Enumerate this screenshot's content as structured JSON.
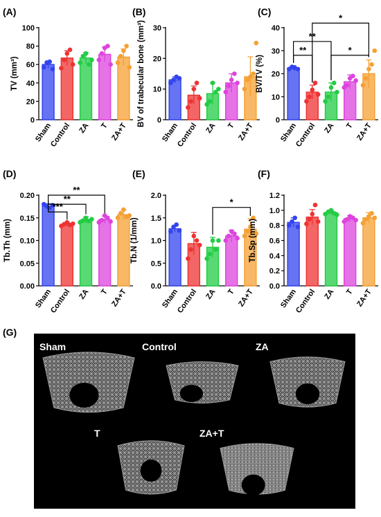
{
  "colors": {
    "Sham": "#3344ee",
    "Control": "#ee3333",
    "ZA": "#22cc44",
    "T": "#dd44dd",
    "ZA+T": "#f5a033",
    "image_bg": "#000000"
  },
  "chart_data": [
    {
      "id": "A",
      "panel_label": "(A)",
      "type": "bar",
      "ylabel": "TV (mm³)",
      "ylim": [
        0,
        100
      ],
      "yticks": [
        "0",
        "20",
        "40",
        "60",
        "80",
        "100"
      ],
      "categories": [
        "Sham",
        "Control",
        "ZA",
        "T",
        "ZA+T"
      ],
      "values": [
        60,
        67,
        67,
        71,
        68
      ],
      "errors": [
        4,
        8,
        6,
        8,
        9
      ],
      "points": [
        [
          57,
          62,
          63,
          55
        ],
        [
          56,
          65,
          72,
          76,
          60
        ],
        [
          62,
          69,
          72,
          60,
          65
        ],
        [
          65,
          72,
          78,
          80,
          60
        ],
        [
          62,
          69,
          75,
          80,
          57
        ]
      ],
      "significance": []
    },
    {
      "id": "B",
      "panel_label": "(B)",
      "type": "bar",
      "ylabel": "BV of trabecular bone (mm³)",
      "ylim": [
        0,
        30
      ],
      "yticks": [
        "0",
        "10",
        "20",
        "30"
      ],
      "categories": [
        "Sham",
        "Control",
        "ZA",
        "T",
        "ZA+T"
      ],
      "values": [
        13,
        8,
        8.5,
        12,
        14
      ],
      "errors": [
        1,
        3,
        3.5,
        3,
        6.5
      ],
      "points": [
        [
          12,
          13,
          14,
          13.5
        ],
        [
          4,
          6,
          10,
          12,
          7
        ],
        [
          5,
          6,
          12,
          9,
          10
        ],
        [
          9,
          11,
          13,
          15,
          12
        ],
        [
          10,
          13,
          14,
          15,
          25
        ]
      ],
      "significance": []
    },
    {
      "id": "C",
      "panel_label": "(C)",
      "type": "bar",
      "ylabel": "BV/TV (%)",
      "ylim": [
        0,
        40
      ],
      "yticks": [
        "0",
        "10",
        "20",
        "30",
        "40"
      ],
      "categories": [
        "Sham",
        "Control",
        "ZA",
        "T",
        "ZA+T"
      ],
      "values": [
        22.5,
        12,
        12,
        16.5,
        20
      ],
      "errors": [
        1,
        3,
        4,
        3,
        6
      ],
      "points": [
        [
          22,
          23,
          22.5,
          22
        ],
        [
          8,
          10,
          13,
          16,
          11
        ],
        [
          8,
          10,
          14,
          16,
          12
        ],
        [
          14,
          15,
          18,
          19,
          17
        ],
        [
          15,
          18,
          22,
          24,
          30
        ]
      ],
      "significance": [
        {
          "from": 1,
          "to": 4,
          "level": 42,
          "label": "*"
        },
        {
          "from": 0,
          "to": 2,
          "level": 34,
          "label": "**"
        },
        {
          "from": 0,
          "to": 1,
          "level": 28,
          "label": "**"
        },
        {
          "from": 2,
          "to": 4,
          "level": 28,
          "label": "*"
        }
      ]
    },
    {
      "id": "D",
      "panel_label": "(D)",
      "type": "bar",
      "ylabel": "Tb.Th (mm)",
      "ylim": [
        0,
        0.2
      ],
      "yticks": [
        "0.00",
        "0.05",
        "0.10",
        "0.15",
        "0.20"
      ],
      "categories": [
        "Sham",
        "Control",
        "ZA",
        "T",
        "ZA+T"
      ],
      "values": [
        0.176,
        0.136,
        0.145,
        0.146,
        0.157
      ],
      "errors": [
        0.005,
        0.004,
        0.007,
        0.008,
        0.011
      ],
      "points": [
        [
          0.18,
          0.175,
          0.172,
          0.178
        ],
        [
          0.132,
          0.136,
          0.14,
          0.134,
          0.137
        ],
        [
          0.14,
          0.144,
          0.15,
          0.143,
          0.147
        ],
        [
          0.14,
          0.145,
          0.155,
          0.15,
          0.142
        ],
        [
          0.15,
          0.16,
          0.168,
          0.152,
          0.155
        ]
      ],
      "significance": [
        {
          "from": 0,
          "to": 3,
          "level": 0.2,
          "label": "**"
        },
        {
          "from": 0,
          "to": 2,
          "level": 0.18,
          "label": "**"
        },
        {
          "from": 0,
          "to": 1,
          "level": 0.163,
          "label": "***"
        }
      ]
    },
    {
      "id": "E",
      "panel_label": "(E)",
      "type": "bar",
      "ylabel": "Tb.N (1/mm)",
      "ylim": [
        0,
        2
      ],
      "yticks": [
        "0.0",
        "0.5",
        "1.0",
        "1.5",
        "2.0"
      ],
      "categories": [
        "Sham",
        "Control",
        "ZA",
        "T",
        "ZA+T"
      ],
      "values": [
        1.26,
        0.93,
        0.85,
        1.1,
        1.25
      ],
      "errors": [
        0.07,
        0.25,
        0.22,
        0.13,
        0.23
      ],
      "points": [
        [
          1.2,
          1.3,
          1.35,
          1.22
        ],
        [
          0.6,
          0.8,
          1.1,
          1.0,
          0.9
        ],
        [
          0.6,
          0.7,
          1.0,
          0.8,
          1.0
        ],
        [
          1.0,
          1.1,
          1.2,
          1.15,
          1.05
        ],
        [
          1.1,
          1.2,
          1.3,
          1.5,
          1.15
        ]
      ],
      "significance": [
        {
          "from": 2,
          "to": 4,
          "level": 1.73,
          "label": "*"
        }
      ]
    },
    {
      "id": "F",
      "panel_label": "(F)",
      "type": "bar",
      "ylabel": "Tb.Sp (mm)",
      "ylim": [
        0,
        1.2
      ],
      "yticks": [
        "0.0",
        "0.2",
        "0.4",
        "0.6",
        "0.8",
        "1.0",
        "1.2"
      ],
      "categories": [
        "Sham",
        "Control",
        "ZA",
        "T",
        "ZA+T"
      ],
      "values": [
        0.84,
        0.91,
        0.97,
        0.89,
        0.9
      ],
      "errors": [
        0.06,
        0.1,
        0.03,
        0.04,
        0.07
      ],
      "points": [
        [
          0.8,
          0.85,
          0.9,
          0.78
        ],
        [
          0.82,
          0.88,
          0.95,
          1.07,
          0.85
        ],
        [
          0.95,
          0.98,
          1.0,
          0.96,
          0.94
        ],
        [
          0.85,
          0.88,
          0.92,
          0.9,
          0.87
        ],
        [
          0.83,
          0.88,
          0.92,
          0.96,
          0.9
        ]
      ],
      "significance": []
    }
  ],
  "image_panel": {
    "panel_label": "(G)",
    "labels": [
      "Sham",
      "Control",
      "ZA",
      "T",
      "ZA+T"
    ]
  }
}
